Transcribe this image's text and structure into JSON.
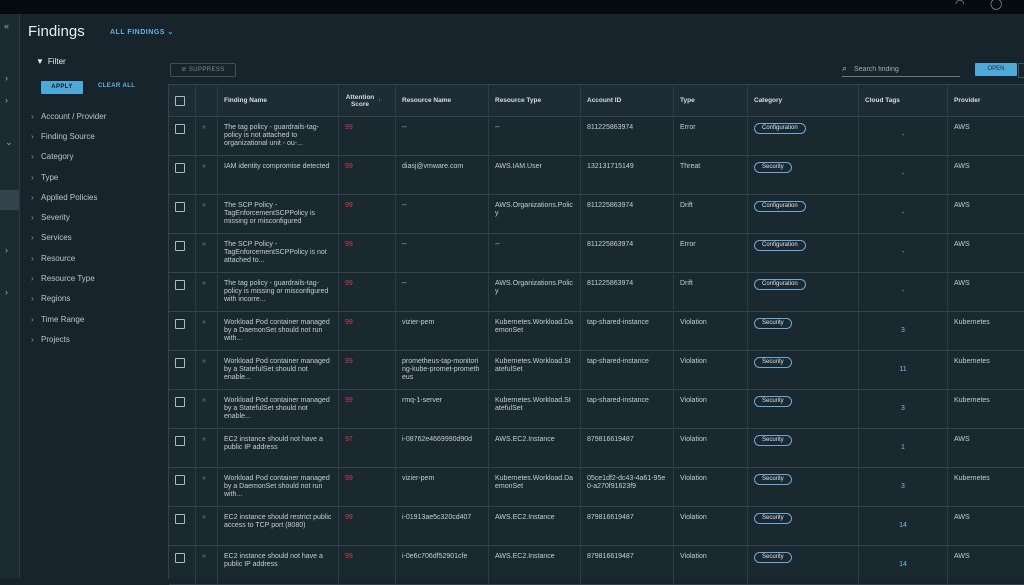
{
  "header": {
    "title": "Findings",
    "view_selector": "ALL FINDINGS"
  },
  "filter": {
    "label": "Filter",
    "apply_label": "APPLY",
    "clear_label": "CLEAR ALL",
    "items": [
      "Account / Provider",
      "Finding Source",
      "Category",
      "Type",
      "Applied Policies",
      "Severity",
      "Services",
      "Resource",
      "Resource Type",
      "Regions",
      "Time Range",
      "Projects"
    ]
  },
  "toolbar": {
    "suppress_label": "SUPPRESS",
    "search_placeholder": "Search finding",
    "open_label": "OPEN"
  },
  "table": {
    "columns": [
      "Finding Name",
      "Attention Score",
      "Resource Name",
      "Resource Type",
      "Account ID",
      "Type",
      "Category",
      "Cloud Tags",
      "Provider"
    ],
    "rows": [
      {
        "name": "The tag policy - guardrails-tag-policy is not attached to organizational unit - ou-...",
        "score": "99",
        "resource": "--",
        "rtype": "--",
        "account": "811225863974",
        "type": "Error",
        "category": "Configuration",
        "tags": "-",
        "provider": "AWS"
      },
      {
        "name": "IAM identity compromise detected",
        "score": "99",
        "resource": "diasj@vmware.com",
        "rtype": "AWS.IAM.User",
        "account": "132131715149",
        "type": "Threat",
        "category": "Security",
        "tags": "-",
        "provider": "AWS"
      },
      {
        "name": "The SCP Policy - TagEnforcementSCPPolicy is missing or misconfigured",
        "score": "99",
        "resource": "--",
        "rtype": "AWS.Organizations.Policy",
        "account": "811225863974",
        "type": "Drift",
        "category": "Configuration",
        "tags": "-",
        "provider": "AWS"
      },
      {
        "name": "The SCP Policy - TagEnforcementSCPPolicy is not attached to...",
        "score": "99",
        "resource": "--",
        "rtype": "--",
        "account": "811225863974",
        "type": "Error",
        "category": "Configuration",
        "tags": "-",
        "provider": "AWS"
      },
      {
        "name": "The tag policy - guardrails-tag-policy is missing or misconfigured with incorre...",
        "score": "99",
        "resource": "--",
        "rtype": "AWS.Organizations.Policy",
        "account": "811225863974",
        "type": "Drift",
        "category": "Configuration",
        "tags": "-",
        "provider": "AWS"
      },
      {
        "name": "Workload Pod container managed by a DaemonSet should not run with...",
        "score": "99",
        "resource": "vizier-pem",
        "rtype": "Kubernetes.Workload.DaemonSet",
        "account": "tap-shared-instance",
        "type": "Violation",
        "category": "Security",
        "tags": "3",
        "provider": "Kubernetes"
      },
      {
        "name": "Workload Pod container managed by a StatefulSet should not enable...",
        "score": "99",
        "resource": "prometheus-tap-monitoring-kube-promet-prometheus",
        "rtype": "Kubernetes.Workload.StatefulSet",
        "account": "tap-shared-instance",
        "type": "Violation",
        "category": "Security",
        "tags": "11",
        "provider": "Kubernetes"
      },
      {
        "name": "Workload Pod container managed by a StatefulSet should not enable...",
        "score": "99",
        "resource": "rmq-1-server",
        "rtype": "Kubernetes.Workload.StatefulSet",
        "account": "tap-shared-instance",
        "type": "Violation",
        "category": "Security",
        "tags": "3",
        "provider": "Kubernetes"
      },
      {
        "name": "EC2 instance should not have a public IP address",
        "score": "97",
        "resource": "i-08762e4669990d90d",
        "rtype": "AWS.EC2.Instance",
        "account": "879816619487",
        "type": "Violation",
        "category": "Security",
        "tags": "1",
        "provider": "AWS"
      },
      {
        "name": "Workload Pod container managed by a DaemonSet should not run with...",
        "score": "99",
        "resource": "vizier-pem",
        "rtype": "Kubernetes.Workload.DaemonSet",
        "account": "05ce1df2-dc43-4a61-95e0-a270f91623f9",
        "type": "Violation",
        "category": "Security",
        "tags": "3",
        "provider": "Kubernetes"
      },
      {
        "name": "EC2 instance should restrict public access to TCP port (8080)",
        "score": "99",
        "resource": "i-01913ae5c320cd407",
        "rtype": "AWS.EC2.Instance",
        "account": "879816619487",
        "type": "Violation",
        "category": "Security",
        "tags": "14",
        "provider": "AWS"
      },
      {
        "name": "EC2 instance should not have a public IP address",
        "score": "99",
        "resource": "i-0e6c706df52901cfe",
        "rtype": "AWS.EC2.Instance",
        "account": "879816619487",
        "type": "Violation",
        "category": "Security",
        "tags": "14",
        "provider": "AWS"
      }
    ]
  },
  "colors": {
    "accent": "#4ea8d8",
    "score": "#d23a4e",
    "background": "#17242c"
  }
}
